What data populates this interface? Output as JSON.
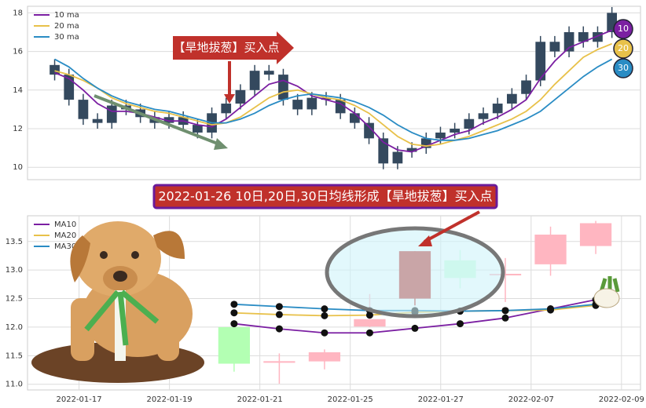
{
  "chart_data": [
    {
      "type": "candlestick",
      "annotation": "【旱地拔葱】买入点",
      "badges": [
        "10",
        "20",
        "30"
      ],
      "candle_color": "#34495e",
      "legend": "upper left",
      "grid": true,
      "xlim": [
        -1.9,
        41
      ],
      "ylim": [
        9.36,
        18.34
      ],
      "yticks": [
        10,
        12,
        14,
        16,
        18
      ],
      "open": [
        15.3,
        14.8,
        13.5,
        12.5,
        12.3,
        13.2,
        13.0,
        12.6,
        12.3,
        12.6,
        12.2,
        11.8,
        12.8,
        13.3,
        14.0,
        15.0,
        14.8,
        13.5,
        13.0,
        13.6,
        13.5,
        12.8,
        12.3,
        11.5,
        10.2,
        10.8,
        11.0,
        11.5,
        11.8,
        12.0,
        12.5,
        12.8,
        13.3,
        13.8,
        14.5,
        16.5,
        16.0,
        17.0,
        16.5,
        17.0
      ],
      "high": [
        15.6,
        15.1,
        13.8,
        12.8,
        13.5,
        13.5,
        13.3,
        12.9,
        12.9,
        12.9,
        12.5,
        13.1,
        13.6,
        14.3,
        15.3,
        15.3,
        15.1,
        13.8,
        13.9,
        13.9,
        13.8,
        13.1,
        12.6,
        11.8,
        11.1,
        11.3,
        11.8,
        12.1,
        12.3,
        12.8,
        13.1,
        13.6,
        14.1,
        14.8,
        16.8,
        16.8,
        17.3,
        17.3,
        17.3,
        18.3
      ],
      "low": [
        14.5,
        13.2,
        12.2,
        12.0,
        12.0,
        12.7,
        12.3,
        12.0,
        12.0,
        11.9,
        11.5,
        11.5,
        12.5,
        13.0,
        13.7,
        14.5,
        13.2,
        12.7,
        12.7,
        13.2,
        12.5,
        12.0,
        11.2,
        9.9,
        9.9,
        10.5,
        10.7,
        11.2,
        11.5,
        11.7,
        12.2,
        12.5,
        13.0,
        13.5,
        14.2,
        15.7,
        15.7,
        16.2,
        16.2,
        16.7
      ],
      "close": [
        14.8,
        13.5,
        12.5,
        12.3,
        13.2,
        13.0,
        12.6,
        12.3,
        12.6,
        12.2,
        11.8,
        12.8,
        13.3,
        14.0,
        15.0,
        14.8,
        13.5,
        13.0,
        13.6,
        13.5,
        12.8,
        12.3,
        11.5,
        10.2,
        10.8,
        11.0,
        11.5,
        11.8,
        12.0,
        12.5,
        12.8,
        13.3,
        13.8,
        14.5,
        16.5,
        16.0,
        17.0,
        16.5,
        17.0,
        18.0
      ],
      "series": [
        {
          "name": "10 ma",
          "color": "#7b1fa2",
          "values": [
            14.9,
            14.6,
            14.0,
            13.3,
            12.9,
            12.9,
            12.8,
            12.6,
            12.4,
            12.4,
            12.2,
            12.1,
            12.5,
            13.1,
            13.7,
            14.3,
            14.5,
            14.2,
            13.7,
            13.5,
            13.3,
            12.8,
            12.1,
            11.3,
            10.9,
            10.8,
            11.1,
            11.4,
            11.7,
            11.9,
            12.3,
            12.6,
            13.0,
            13.5,
            14.6,
            15.5,
            16.2,
            16.5,
            16.8,
            17.1
          ]
        },
        {
          "name": "20 ma",
          "color": "#e8c14a",
          "values": [
            15.0,
            14.8,
            14.5,
            14.1,
            13.6,
            13.3,
            13.1,
            12.9,
            12.8,
            12.6,
            12.4,
            12.2,
            12.3,
            12.6,
            13.1,
            13.6,
            13.9,
            14.0,
            13.8,
            13.6,
            13.5,
            13.2,
            12.8,
            12.2,
            11.6,
            11.2,
            11.1,
            11.2,
            11.4,
            11.6,
            11.9,
            12.2,
            12.5,
            12.9,
            13.5,
            14.3,
            15.0,
            15.7,
            16.1,
            16.4
          ]
        },
        {
          "name": "30 ma",
          "color": "#2a8cc4",
          "values": [
            15.6,
            15.2,
            14.6,
            14.1,
            13.7,
            13.4,
            13.2,
            13.0,
            12.9,
            12.7,
            12.5,
            12.3,
            12.3,
            12.5,
            12.8,
            13.2,
            13.5,
            13.7,
            13.8,
            13.7,
            13.6,
            13.4,
            13.1,
            12.7,
            12.2,
            11.8,
            11.5,
            11.4,
            11.4,
            11.5,
            11.7,
            11.9,
            12.2,
            12.5,
            12.9,
            13.5,
            14.1,
            14.7,
            15.2,
            15.6
          ]
        }
      ]
    },
    {
      "type": "candlestick",
      "title": "2022-01-26 10日,20日,30日均线形成【旱地拔葱】买入点",
      "colors": [
        "#b3ffb3",
        "#ffb6c1",
        "#ffb6c1",
        "#ffb6c1",
        "#c0312b",
        "#ccffdd",
        "#ffb6c1",
        "#ffb6c1",
        "#ffb6c1"
      ],
      "legend": "upper left",
      "grid": true,
      "markers": true,
      "xlim": [
        -4.57,
        8.99
      ],
      "ylim": [
        10.9,
        13.95
      ],
      "xticks": [
        {
          "value": -3.43,
          "label": "2022-01-17"
        },
        {
          "value": -1.43,
          "label": "2022-01-19"
        },
        {
          "value": 0.57,
          "label": "2022-01-21"
        },
        {
          "value": 2.57,
          "label": "2022-01-25"
        },
        {
          "value": 4.57,
          "label": "2022-01-27"
        },
        {
          "value": 6.57,
          "label": "2022-02-07"
        },
        {
          "value": 8.57,
          "label": "2022-02-09"
        }
      ],
      "yticks": [
        {
          "value": 11,
          "label": "11.0"
        },
        {
          "value": 11.5,
          "label": "11.5"
        },
        {
          "value": 12,
          "label": "12.0"
        },
        {
          "value": 12.5,
          "label": "12.5"
        },
        {
          "value": 13,
          "label": "13.0"
        },
        {
          "value": 13.5,
          "label": "13.5"
        }
      ],
      "open": [
        12.0,
        11.39,
        11.4,
        12.01,
        12.5,
        13.17,
        12.92,
        13.1,
        13.42
      ],
      "high": [
        12.0,
        11.54,
        11.61,
        12.58,
        13.33,
        13.35,
        13.21,
        13.76,
        13.86
      ],
      "low": [
        11.22,
        11.01,
        11.26,
        12.0,
        12.38,
        12.68,
        12.44,
        12.9,
        13.28
      ],
      "close": [
        11.36,
        11.39,
        11.56,
        12.14,
        13.33,
        12.86,
        12.92,
        13.62,
        13.82
      ],
      "series": [
        {
          "name": "MA10",
          "color": "#7b1fa2",
          "values": [
            12.06,
            11.97,
            11.9,
            11.9,
            11.98,
            12.06,
            12.16,
            12.32,
            12.48
          ]
        },
        {
          "name": "MA20",
          "color": "#e8c14a",
          "values": [
            12.25,
            12.22,
            12.2,
            12.21,
            12.26,
            12.28,
            12.29,
            12.3,
            12.38
          ]
        },
        {
          "name": "MA30",
          "color": "#2a8cc4",
          "values": [
            12.4,
            12.36,
            12.32,
            12.29,
            12.29,
            12.28,
            12.29,
            12.32,
            12.4
          ]
        }
      ]
    }
  ]
}
